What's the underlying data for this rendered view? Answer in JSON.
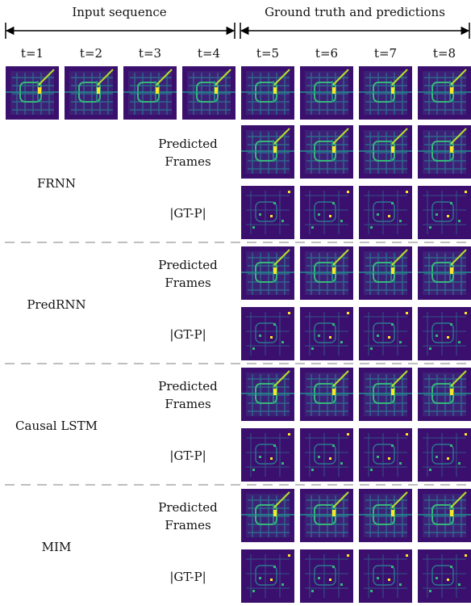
{
  "header": {
    "left": "Input sequence",
    "right": "Ground truth and predictions"
  },
  "time_labels": [
    "t=1",
    "t=2",
    "t=3",
    "t=4",
    "t=5",
    "t=6",
    "t=7",
    "t=8"
  ],
  "models": [
    {
      "name": "FRNN",
      "predicted_label": [
        "Predicted",
        "Frames"
      ],
      "error_label": "|GT-P|"
    },
    {
      "name": "PredRNN",
      "predicted_label": [
        "Predicted",
        "Frames"
      ],
      "error_label": "|GT-P|"
    },
    {
      "name": "Causal LSTM",
      "predicted_label": [
        "Predicted",
        "Frames"
      ],
      "error_label": "|GT-P|"
    },
    {
      "name": "MIM",
      "predicted_label": [
        "Predicted",
        "Frames"
      ],
      "error_label": "|GT-P|"
    }
  ]
}
